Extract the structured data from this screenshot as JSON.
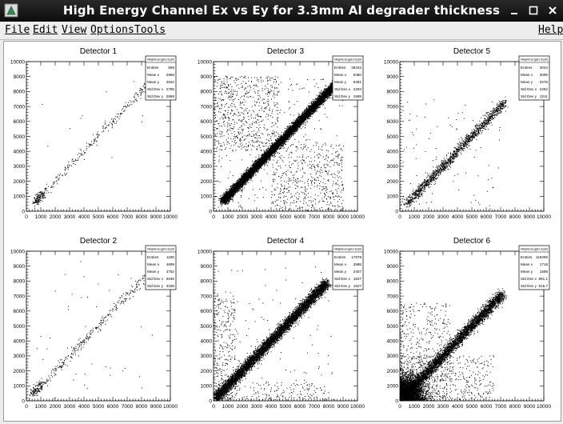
{
  "window": {
    "title": "High Energy Channel Ex vs Ey for 3.3mm Al degrader thickness"
  },
  "menu": {
    "file": "File",
    "edit": "Edit",
    "view": "View",
    "options": "Options",
    "tools": "Tools",
    "help": "Help"
  },
  "stats_header": "hHighEnergyEx:Ey(0)",
  "stat_labels": [
    "Entries",
    "Mean x",
    "Mean y",
    "Std Dev x",
    "Std Dev y"
  ],
  "chart_data": [
    {
      "type": "scatter",
      "title": "Detector 1",
      "xlim": [
        0,
        10000
      ],
      "ylim": [
        0,
        10000
      ],
      "x_ticks": [
        0,
        1000,
        2000,
        3000,
        4000,
        5000,
        6000,
        7000,
        8000,
        9000,
        10000
      ],
      "y_ticks": [
        0,
        1000,
        2000,
        3000,
        4000,
        5000,
        6000,
        7000,
        8000,
        9000,
        10000
      ],
      "stats": [
        "596",
        "2868",
        "2842",
        "2795",
        "2868"
      ],
      "distribution": {
        "density": "sparse",
        "cluster_center": [
          800,
          800
        ],
        "diagonal_max": 8500,
        "background": "very low"
      }
    },
    {
      "type": "scatter",
      "title": "Detector 3",
      "xlim": [
        0,
        10000
      ],
      "ylim": [
        0,
        10000
      ],
      "x_ticks": [
        0,
        1000,
        2000,
        3000,
        4000,
        5000,
        6000,
        7000,
        8000,
        9000,
        10000
      ],
      "y_ticks": [
        0,
        1000,
        2000,
        3000,
        4000,
        5000,
        6000,
        7000,
        8000,
        9000,
        10000
      ],
      "stats": [
        "36182",
        "6480",
        "6481",
        "2253",
        "1589"
      ],
      "distribution": {
        "density": "very dense",
        "diagonal_min": 800,
        "diagonal_max": 8400,
        "background": "high, concentrated at top-left and bottom-right"
      }
    },
    {
      "type": "scatter",
      "title": "Detector 5",
      "xlim": [
        0,
        10000
      ],
      "ylim": [
        0,
        10000
      ],
      "x_ticks": [
        0,
        1000,
        2000,
        3000,
        4000,
        5000,
        6000,
        7000,
        8000,
        9000,
        10000
      ],
      "y_ticks": [
        0,
        1000,
        2000,
        3000,
        4000,
        5000,
        6000,
        7000,
        8000,
        9000,
        10000
      ],
      "stats": [
        "3044",
        "3099",
        "3278",
        "2252",
        "2211"
      ],
      "distribution": {
        "density": "moderate",
        "diagonal_min": 500,
        "diagonal_max": 7200,
        "background": "low"
      }
    },
    {
      "type": "scatter",
      "title": "Detector 2",
      "xlim": [
        0,
        10000
      ],
      "ylim": [
        0,
        10000
      ],
      "x_ticks": [
        0,
        1000,
        2000,
        3000,
        4000,
        5000,
        6000,
        7000,
        8000,
        9000,
        10000
      ],
      "y_ticks": [
        0,
        1000,
        2000,
        3000,
        4000,
        5000,
        6000,
        7000,
        8000,
        9000,
        10000
      ],
      "stats": [
        "1180",
        "4699",
        "4752",
        "3045",
        "3188"
      ],
      "distribution": {
        "density": "sparse",
        "cluster_center": [
          700,
          700
        ],
        "diagonal_max": 8500,
        "background": "very low"
      }
    },
    {
      "type": "scatter",
      "title": "Detector 4",
      "xlim": [
        0,
        10000
      ],
      "ylim": [
        0,
        10000
      ],
      "x_ticks": [
        0,
        1000,
        2000,
        3000,
        4000,
        5000,
        6000,
        7000,
        8000,
        9000,
        10000
      ],
      "y_ticks": [
        0,
        1000,
        2000,
        3000,
        4000,
        5000,
        6000,
        7000,
        8000,
        9000,
        10000
      ],
      "stats": [
        "17879",
        "2885",
        "2407",
        "1627",
        "1627"
      ],
      "distribution": {
        "density": "dense",
        "diagonal_min": 200,
        "diagonal_max": 7800,
        "background": "moderate, near axes"
      }
    },
    {
      "type": "scatter",
      "title": "Detector 6",
      "xlim": [
        0,
        10000
      ],
      "ylim": [
        0,
        10000
      ],
      "x_ticks": [
        0,
        1000,
        2000,
        3000,
        4000,
        5000,
        6000,
        7000,
        8000,
        9000,
        10000
      ],
      "y_ticks": [
        0,
        1000,
        2000,
        3000,
        4000,
        5000,
        6000,
        7000,
        8000,
        9000,
        10000
      ],
      "stats": [
        "119259",
        "1719",
        "1599",
        "891.1",
        "915.7"
      ],
      "distribution": {
        "density": "very dense",
        "cluster_center": [
          500,
          500
        ],
        "diagonal_max": 7000,
        "background": "dense blob near origin"
      }
    }
  ]
}
